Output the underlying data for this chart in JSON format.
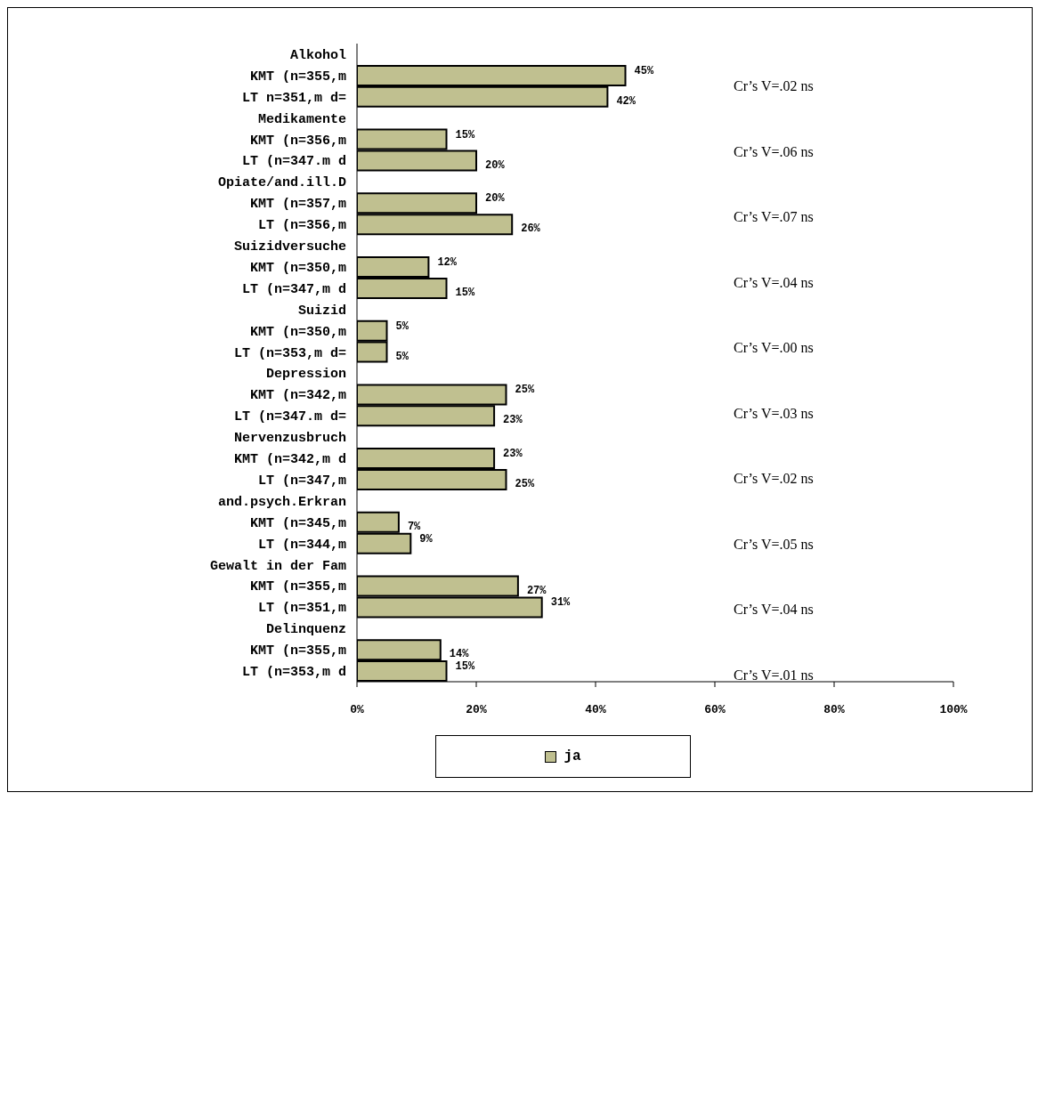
{
  "chart_data": {
    "type": "bar",
    "orientation": "horizontal",
    "categories": [
      "Alkohol",
      "KMT (n=355,m",
      "LT n=351,m d=",
      "Medikamente",
      "KMT (n=356,m",
      "LT (n=347.m d",
      "Opiate/and.ill.D",
      "KMT (n=357,m",
      "LT (n=356,m",
      "Suizidversuche",
      "KMT (n=350,m",
      "LT (n=347,m d",
      "Suizid",
      "KMT (n=350,m",
      "LT (n=353,m d=",
      "Depression",
      "KMT (n=342,m",
      "LT (n=347.m d=",
      "Nervenzusbruch",
      "KMT (n=342,m d",
      "LT (n=347,m",
      "and.psych.Erkran",
      "KMT (n=345,m",
      "LT (n=344,m",
      "Gewalt in der Fam",
      "KMT (n=355,m",
      "LT (n=351,m",
      "Delinquenz",
      "KMT (n=355,m",
      "LT (n=353,m d"
    ],
    "series": [
      {
        "name": "ja",
        "color": "#c0c090",
        "values": [
          null,
          45,
          42,
          null,
          15,
          20,
          null,
          20,
          26,
          null,
          12,
          15,
          null,
          5,
          5,
          null,
          25,
          23,
          null,
          23,
          25,
          null,
          7,
          9,
          null,
          27,
          31,
          null,
          14,
          15
        ],
        "value_labels": [
          null,
          "45%",
          "42%",
          null,
          "15%",
          "20%",
          null,
          "20%",
          "26%",
          null,
          "12%",
          "15%",
          null,
          "5%",
          "5%",
          null,
          "25%",
          "23%",
          null,
          "23%",
          "25%",
          null,
          "7%",
          "9%",
          null,
          "27%",
          "31%",
          null,
          "14%",
          "15%"
        ]
      }
    ],
    "xlim": [
      0,
      100
    ],
    "xticks": [
      {
        "value": 0,
        "label": "0%"
      },
      {
        "value": 20,
        "label": "20%"
      },
      {
        "value": 40,
        "label": "40%"
      },
      {
        "value": 60,
        "label": "60%"
      },
      {
        "value": 80,
        "label": "80%"
      },
      {
        "value": 100,
        "label": "100%"
      }
    ],
    "annotations": [
      "Cr’s V=.02 ns",
      "Cr’s V=.06 ns",
      "Cr’s V=.07 ns",
      "Cr’s V=.04 ns",
      "Cr’s V=.00 ns",
      "Cr’s V=.03 ns",
      "Cr’s V=.02 ns",
      "Cr’s V=.05 ns",
      "Cr’s V=.04 ns",
      "Cr’s V=.01 ns"
    ],
    "legend": "bottom"
  }
}
